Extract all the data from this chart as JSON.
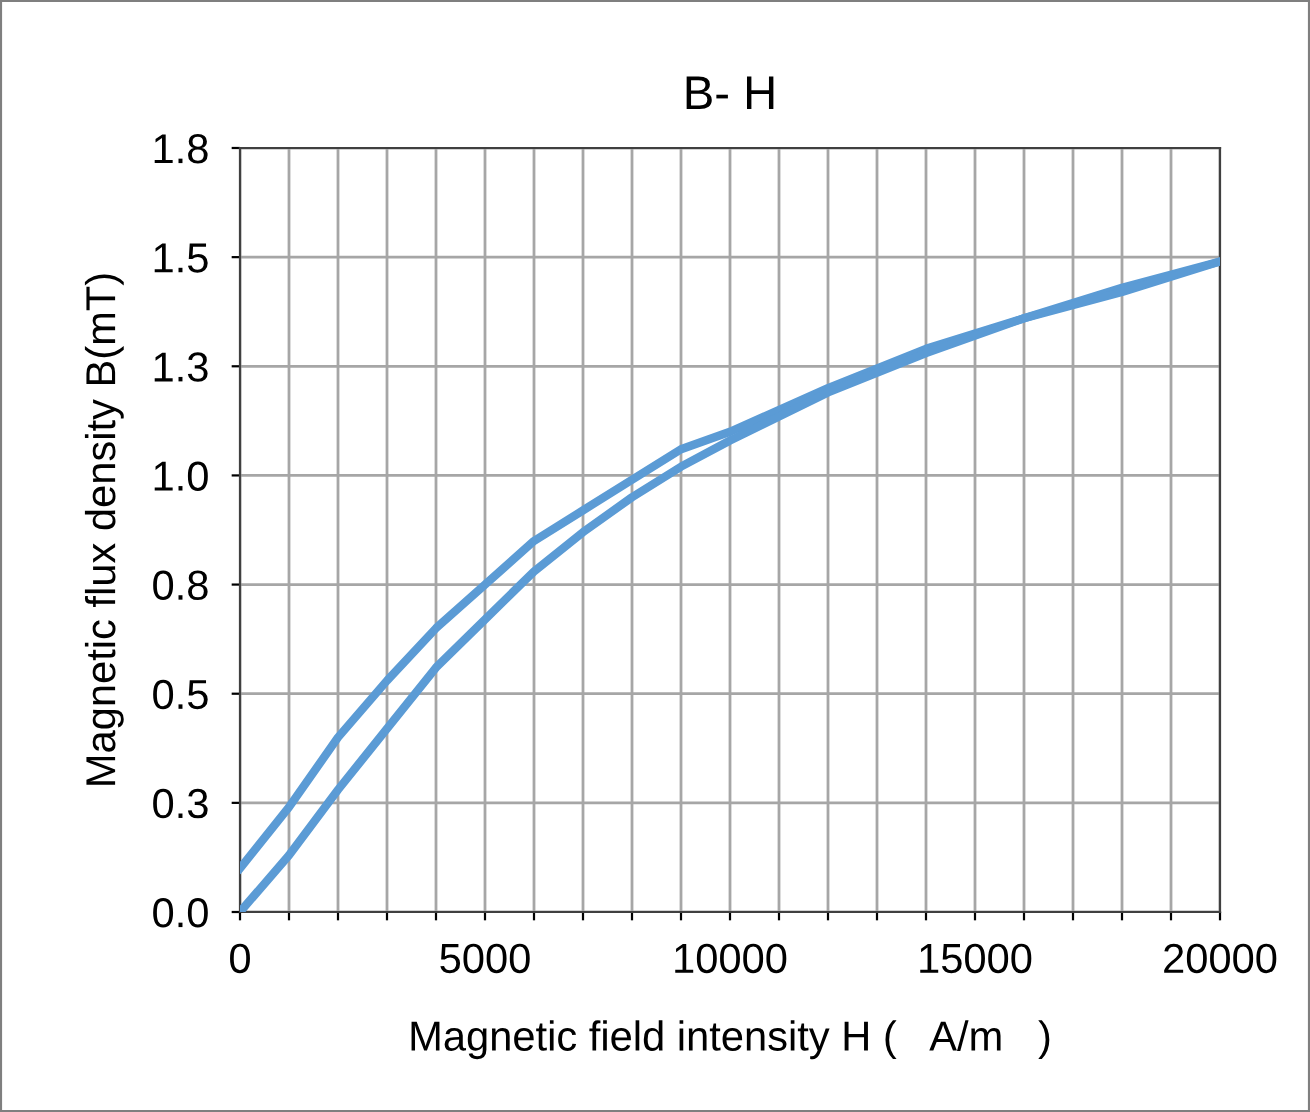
{
  "chart_data": {
    "type": "line",
    "title": "B- H",
    "xlabel": "Magnetic field intensity H (   A/m   )",
    "ylabel": "Magnetic flux density B(mT)",
    "series": [
      {
        "color": "#5b9bd5",
        "x": [
          0,
          1000,
          2000,
          3000,
          4000,
          5000,
          6000,
          7000,
          8000,
          9000,
          10000,
          12000,
          14000,
          16000,
          18000,
          20000
        ],
        "values": [
          0.1,
          0.24,
          0.4,
          0.53,
          0.65,
          0.75,
          0.85,
          0.92,
          0.99,
          1.06,
          1.1,
          1.2,
          1.29,
          1.36,
          1.43,
          1.49
        ]
      },
      {
        "color": "#5b9bd5",
        "x": [
          0,
          1000,
          2000,
          3000,
          4000,
          5000,
          6000,
          7000,
          8000,
          9000,
          10000,
          12000,
          14000,
          16000,
          18000,
          20000
        ],
        "values": [
          0.0,
          0.13,
          0.28,
          0.42,
          0.56,
          0.67,
          0.78,
          0.87,
          0.95,
          1.02,
          1.08,
          1.19,
          1.28,
          1.36,
          1.42,
          1.49
        ]
      }
    ],
    "xlim": [
      0,
      20000
    ],
    "xticks": [
      0,
      {
        "value": 1000,
        "label": null
      },
      {
        "value": 2000,
        "label": null
      },
      {
        "value": 3000,
        "label": null
      },
      {
        "value": 4000,
        "label": null
      },
      5000,
      {
        "value": 6000,
        "label": null
      },
      {
        "value": 7000,
        "label": null
      },
      {
        "value": 8000,
        "label": null
      },
      {
        "value": 9000,
        "label": null
      },
      10000,
      {
        "value": 11000,
        "label": null
      },
      {
        "value": 12000,
        "label": null
      },
      {
        "value": 13000,
        "label": null
      },
      {
        "value": 14000,
        "label": null
      },
      15000,
      {
        "value": 16000,
        "label": null
      },
      {
        "value": 17000,
        "label": null
      },
      {
        "value": 18000,
        "label": null
      },
      {
        "value": 19000,
        "label": null
      },
      20000
    ],
    "ylim": [
      0,
      1.75
    ],
    "yticks": [
      {
        "value": 0,
        "label": "0.0"
      },
      {
        "value": 0.25,
        "label": "0.3"
      },
      {
        "value": 0.5,
        "label": "0.5"
      },
      {
        "value": 0.75,
        "label": "0.8"
      },
      {
        "value": 1.0,
        "label": "1.0"
      },
      {
        "value": 1.25,
        "label": "1.3"
      },
      {
        "value": 1.5,
        "label": "1.5"
      },
      {
        "value": 1.75,
        "label": "1.8"
      }
    ],
    "grid": true,
    "legend": false,
    "marker": "none",
    "line_style": "solid"
  }
}
